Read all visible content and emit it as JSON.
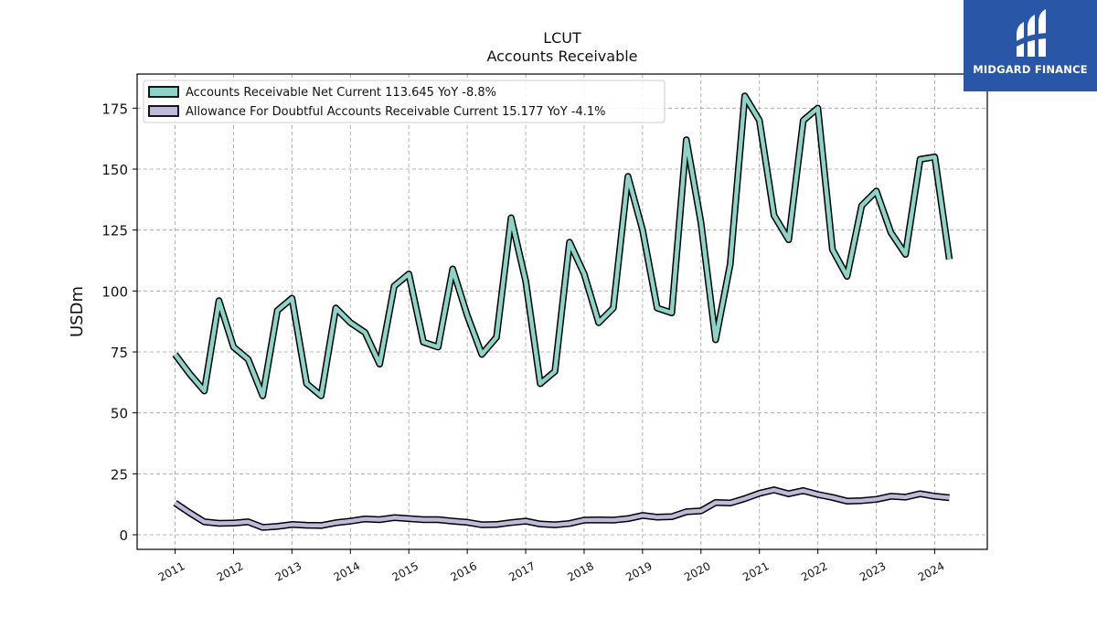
{
  "header": {
    "ticker": "LCUT",
    "subtitle": "Accounts Receivable"
  },
  "brand": {
    "name": "MIDGARD FINANCE",
    "color": "#2a56a8"
  },
  "chart_data": {
    "type": "line",
    "ylabel": "USDm",
    "ylim": [
      -6,
      189
    ],
    "xlim": [
      2010.35,
      2024.9
    ],
    "yticks": [
      0,
      25,
      50,
      75,
      100,
      125,
      150,
      175
    ],
    "xticks": [
      2011,
      2012,
      2013,
      2014,
      2015,
      2016,
      2017,
      2018,
      2019,
      2020,
      2021,
      2022,
      2023,
      2024
    ],
    "grid": true,
    "legend_position": "top-left",
    "series": [
      {
        "name": "Accounts Receivable Net Current  113.645 YoY -8.8%",
        "color": "#8dd3c7",
        "x": [
          2011.0,
          2011.25,
          2011.5,
          2011.75,
          2012.0,
          2012.25,
          2012.5,
          2012.75,
          2013.0,
          2013.25,
          2013.5,
          2013.75,
          2014.0,
          2014.25,
          2014.5,
          2014.75,
          2015.0,
          2015.25,
          2015.5,
          2015.75,
          2016.0,
          2016.25,
          2016.5,
          2016.75,
          2017.0,
          2017.25,
          2017.5,
          2017.75,
          2018.0,
          2018.25,
          2018.5,
          2018.75,
          2019.0,
          2019.25,
          2019.5,
          2019.75,
          2020.0,
          2020.25,
          2020.5,
          2020.75,
          2021.0,
          2021.25,
          2021.5,
          2021.75,
          2022.0,
          2022.25,
          2022.5,
          2022.75,
          2023.0,
          2023.25,
          2023.5,
          2023.75,
          2024.0,
          2024.25
        ],
        "values": [
          74,
          66,
          59,
          96,
          77,
          72,
          57,
          92,
          97,
          62,
          57,
          93,
          87,
          83,
          70,
          102,
          107,
          79,
          77,
          109,
          90,
          74,
          81,
          130,
          104,
          62,
          67,
          120,
          107,
          87,
          93,
          147,
          125,
          93,
          91,
          162,
          128,
          80,
          111,
          180,
          170,
          131,
          121,
          170,
          175,
          117,
          106,
          135,
          141,
          124,
          115,
          154,
          155,
          113
        ]
      },
      {
        "name": "Allowance For Doubtful Accounts Receivable Current  15.177 YoY -4.1%",
        "color": "#bebada",
        "x": [
          2011.0,
          2011.25,
          2011.5,
          2011.75,
          2012.0,
          2012.25,
          2012.5,
          2012.75,
          2013.0,
          2013.25,
          2013.5,
          2013.75,
          2014.0,
          2014.25,
          2014.5,
          2014.75,
          2015.0,
          2015.25,
          2015.5,
          2015.75,
          2016.0,
          2016.25,
          2016.5,
          2016.75,
          2017.0,
          2017.25,
          2017.5,
          2017.75,
          2018.0,
          2018.25,
          2018.5,
          2018.75,
          2019.0,
          2019.25,
          2019.5,
          2019.75,
          2020.0,
          2020.25,
          2020.5,
          2020.75,
          2021.0,
          2021.25,
          2021.5,
          2021.75,
          2022.0,
          2022.25,
          2022.5,
          2022.75,
          2023.0,
          2023.25,
          2023.5,
          2023.75,
          2024.0,
          2024.25
        ],
        "values": [
          13,
          9,
          5.3,
          4.7,
          4.8,
          5.3,
          3.0,
          3.4,
          4.2,
          3.9,
          3.8,
          4.9,
          5.6,
          6.5,
          6.2,
          7.0,
          6.6,
          6.2,
          6.2,
          5.6,
          5.1,
          4.1,
          4.2,
          5.0,
          5.6,
          4.4,
          4.1,
          4.6,
          6.0,
          6.1,
          6.0,
          6.6,
          7.9,
          7.2,
          7.4,
          9.4,
          9.8,
          13.2,
          13.0,
          14.8,
          17.0,
          18.4,
          16.8,
          18.1,
          16.5,
          15.3,
          13.8,
          14.0,
          14.5,
          15.8,
          15.4,
          16.8,
          15.8,
          15.2
        ]
      }
    ]
  }
}
